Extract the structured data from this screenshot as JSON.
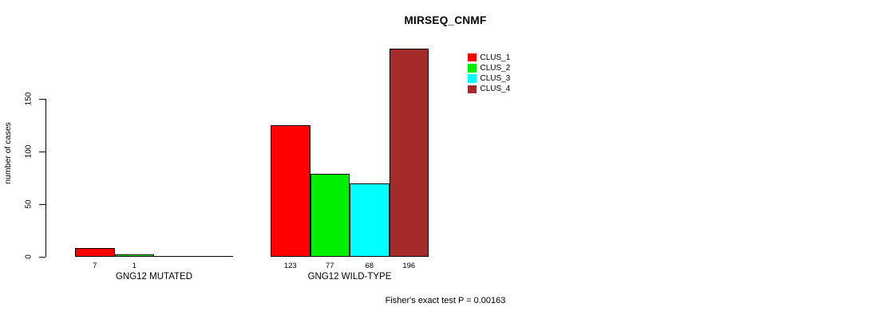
{
  "chart_data": {
    "type": "bar",
    "title": "MIRSEQ_CNMF",
    "ylabel": "number of cases",
    "xlabel": "",
    "ylim": [
      0,
      200
    ],
    "yticks": [
      0,
      50,
      100,
      150
    ],
    "grid": false,
    "legend_position": "top-right",
    "categories": [
      "GNG12 MUTATED",
      "GNG12 WILD-TYPE"
    ],
    "series": [
      {
        "name": "CLUS_1",
        "color": "#ff0000",
        "values": [
          7,
          123
        ]
      },
      {
        "name": "CLUS_2",
        "color": "#00ee00",
        "values": [
          1,
          77
        ]
      },
      {
        "name": "CLUS_3",
        "color": "#00ffff",
        "values": [
          0,
          68
        ]
      },
      {
        "name": "CLUS_4",
        "color": "#a52a2a",
        "values": [
          0,
          196
        ]
      }
    ],
    "bar_value_labels": [
      [
        "7",
        "1",
        "",
        ""
      ],
      [
        "123",
        "77",
        "68",
        "196"
      ]
    ],
    "annotation": "Fisher's exact test P = 0.00163"
  }
}
